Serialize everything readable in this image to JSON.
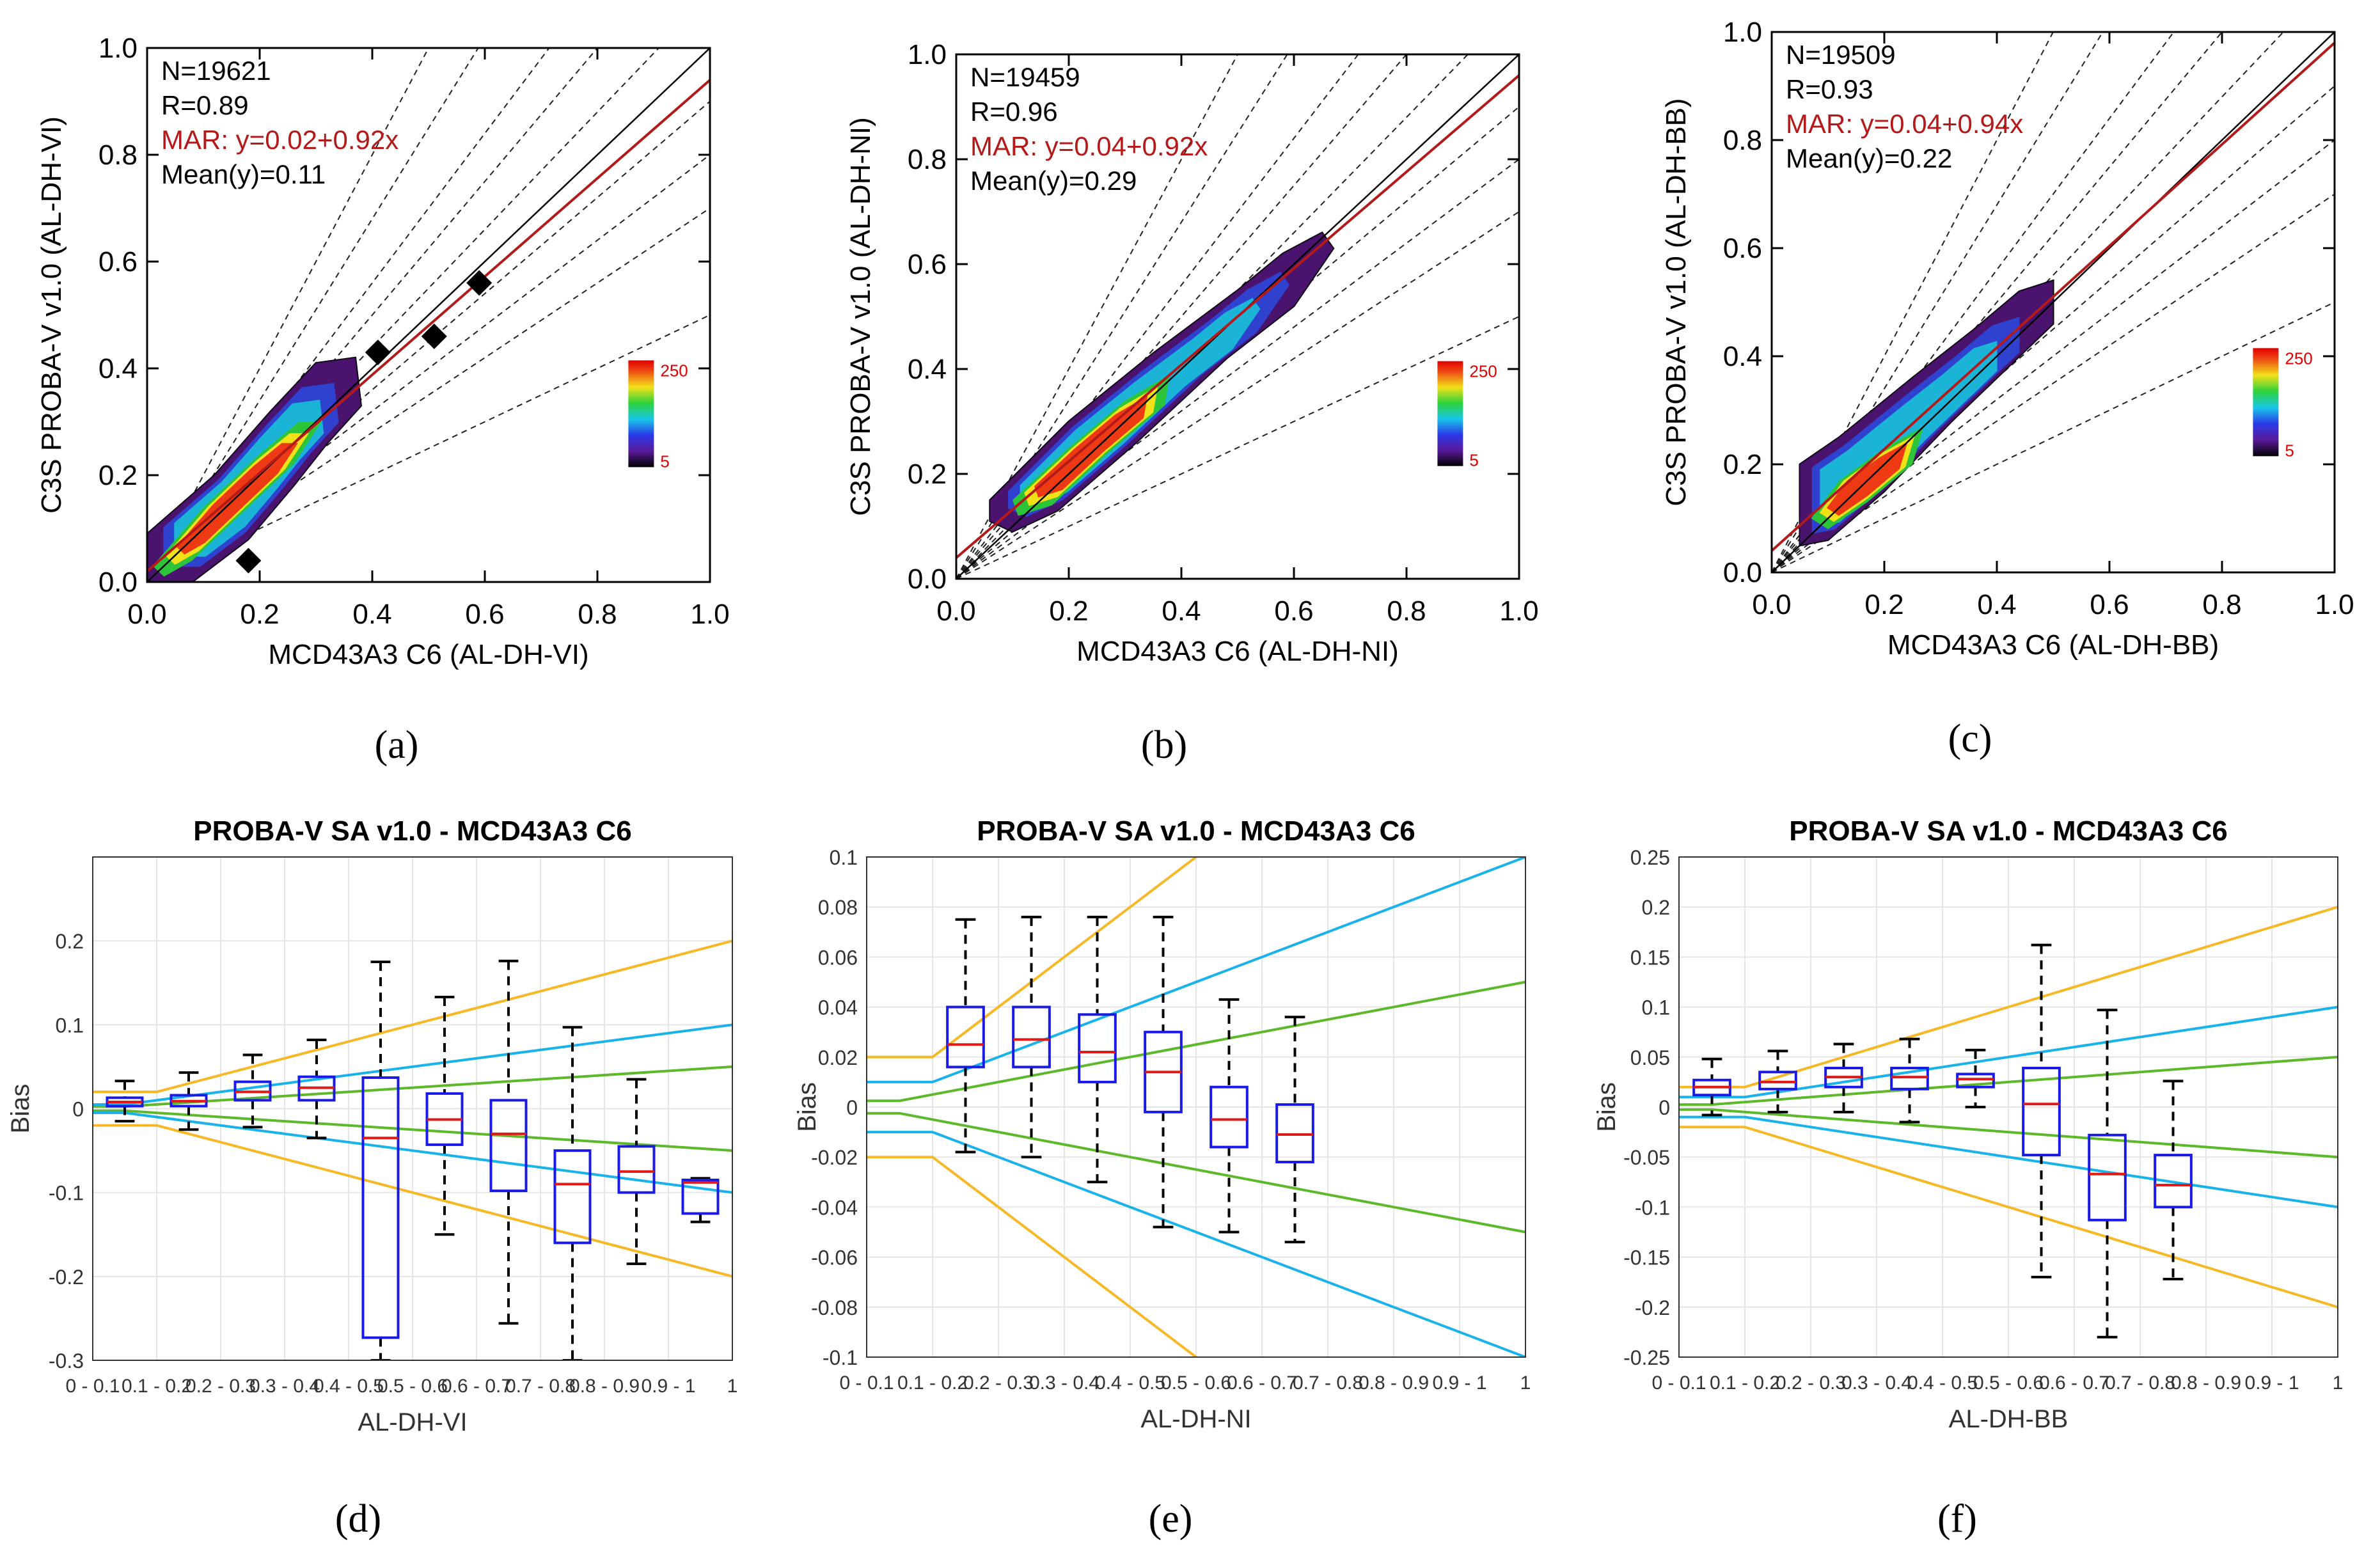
{
  "figure": {
    "panel_labels": [
      "(a)",
      "(b)",
      "(c)",
      "(d)",
      "(e)",
      "(f)"
    ]
  },
  "colors": {
    "mar_red": "#b41a1a",
    "blue_line": "#18b3ea",
    "green_line": "#5db92a",
    "orange_line": "#f7b825",
    "box_blue": "#1a1ae6",
    "median_red": "#e01919",
    "grid": "#e6e6e6"
  },
  "chart_data": [
    {
      "id": "a",
      "type": "scatter",
      "xlabel": "MCD43A3 C6 (AL-DH-VI)",
      "ylabel": "C3S PROBA-V v1.0 (AL-DH-VI)",
      "xlim": [
        0,
        1
      ],
      "ylim": [
        0,
        1
      ],
      "xticks": [
        "0.0",
        "0.2",
        "0.4",
        "0.6",
        "0.8",
        "1.0"
      ],
      "yticks": [
        "0.0",
        "0.2",
        "0.4",
        "0.6",
        "0.8",
        "1.0"
      ],
      "stats": {
        "n": "N=19621",
        "r": "R=0.89",
        "mar": "MAR: y=0.02+0.92x",
        "mean": "Mean(y)=0.11"
      },
      "mar_fit": {
        "intercept": 0.02,
        "slope": 0.92
      },
      "density_path": [
        [
          0.0,
          0.0
        ],
        [
          0.0,
          0.09
        ],
        [
          0.12,
          0.2
        ],
        [
          0.22,
          0.32
        ],
        [
          0.3,
          0.41
        ],
        [
          0.37,
          0.42
        ],
        [
          0.38,
          0.33
        ],
        [
          0.32,
          0.26
        ],
        [
          0.26,
          0.18
        ],
        [
          0.18,
          0.08
        ],
        [
          0.08,
          0.0
        ]
      ],
      "density_core": [
        [
          0.01,
          0.03
        ],
        [
          0.1,
          0.14
        ],
        [
          0.2,
          0.24
        ],
        [
          0.27,
          0.3
        ],
        [
          0.31,
          0.3
        ],
        [
          0.26,
          0.22
        ],
        [
          0.18,
          0.14
        ],
        [
          0.08,
          0.04
        ],
        [
          0.03,
          0.01
        ]
      ],
      "outliers": [
        [
          0.41,
          0.43
        ],
        [
          0.51,
          0.46
        ],
        [
          0.59,
          0.56
        ],
        [
          0.18,
          0.04
        ]
      ],
      "colorbar": {
        "max": "250",
        "min": "5"
      }
    },
    {
      "id": "b",
      "type": "scatter",
      "xlabel": "MCD43A3 C6 (AL-DH-NI)",
      "ylabel": "C3S PROBA-V v1.0 (AL-DH-NI)",
      "xlim": [
        0,
        1
      ],
      "ylim": [
        0,
        1
      ],
      "xticks": [
        "0.0",
        "0.2",
        "0.4",
        "0.6",
        "0.8",
        "1.0"
      ],
      "yticks": [
        "0.0",
        "0.2",
        "0.4",
        "0.6",
        "0.8",
        "1.0"
      ],
      "stats": {
        "n": "N=19459",
        "r": "R=0.96",
        "mar": "MAR: y=0.04+0.92x",
        "mean": "Mean(y)=0.29"
      },
      "mar_fit": {
        "intercept": 0.04,
        "slope": 0.92
      },
      "density_path": [
        [
          0.06,
          0.11
        ],
        [
          0.06,
          0.15
        ],
        [
          0.2,
          0.3
        ],
        [
          0.35,
          0.43
        ],
        [
          0.5,
          0.55
        ],
        [
          0.58,
          0.62
        ],
        [
          0.65,
          0.66
        ],
        [
          0.67,
          0.63
        ],
        [
          0.6,
          0.52
        ],
        [
          0.48,
          0.42
        ],
        [
          0.32,
          0.26
        ],
        [
          0.18,
          0.13
        ],
        [
          0.1,
          0.09
        ]
      ],
      "density_core": [
        [
          0.1,
          0.15
        ],
        [
          0.2,
          0.25
        ],
        [
          0.3,
          0.34
        ],
        [
          0.38,
          0.39
        ],
        [
          0.37,
          0.33
        ],
        [
          0.27,
          0.24
        ],
        [
          0.17,
          0.14
        ],
        [
          0.11,
          0.12
        ]
      ],
      "outliers": [],
      "colorbar": {
        "max": "250",
        "min": "5"
      }
    },
    {
      "id": "c",
      "type": "scatter",
      "xlabel": "MCD43A3 C6 (AL-DH-BB)",
      "ylabel": "C3S PROBA-V v1.0 (AL-DH-BB)",
      "xlim": [
        0,
        1
      ],
      "ylim": [
        0,
        1
      ],
      "xticks": [
        "0.0",
        "0.2",
        "0.4",
        "0.6",
        "0.8",
        "1.0"
      ],
      "yticks": [
        "0.0",
        "0.2",
        "0.4",
        "0.6",
        "0.8",
        "1.0"
      ],
      "stats": {
        "n": "N=19509",
        "r": "R=0.93",
        "mar": "MAR: y=0.04+0.94x",
        "mean": "Mean(y)=0.22"
      },
      "mar_fit": {
        "intercept": 0.04,
        "slope": 0.94
      },
      "density_path": [
        [
          0.05,
          0.05
        ],
        [
          0.05,
          0.2
        ],
        [
          0.12,
          0.25
        ],
        [
          0.25,
          0.36
        ],
        [
          0.36,
          0.45
        ],
        [
          0.44,
          0.52
        ],
        [
          0.5,
          0.54
        ],
        [
          0.5,
          0.46
        ],
        [
          0.42,
          0.38
        ],
        [
          0.32,
          0.28
        ],
        [
          0.2,
          0.15
        ],
        [
          0.1,
          0.06
        ]
      ],
      "density_core": [
        [
          0.07,
          0.1
        ],
        [
          0.12,
          0.17
        ],
        [
          0.2,
          0.23
        ],
        [
          0.27,
          0.27
        ],
        [
          0.25,
          0.2
        ],
        [
          0.17,
          0.13
        ],
        [
          0.1,
          0.08
        ]
      ],
      "outliers": [],
      "colorbar": {
        "max": "250",
        "min": "5"
      }
    },
    {
      "id": "d",
      "type": "box",
      "title": "PROBA-V SA v1.0 - MCD43A3 C6",
      "xlabel": "AL-DH-VI",
      "ylabel": "Bias",
      "xlim": [
        0,
        1
      ],
      "ylim": [
        -0.3,
        0.3
      ],
      "yticks": [
        [
          "0.2",
          0.2
        ],
        [
          "0.1",
          0.1
        ],
        [
          "0",
          0
        ],
        [
          "-0.1",
          -0.1
        ],
        [
          "-0.2",
          -0.2
        ],
        [
          "-0.3",
          -0.3
        ]
      ],
      "xticks": [
        "0 - 0.1",
        "0.1 - 0.2",
        "0.2 - 0.3",
        "0.3 - 0.4",
        "0.4 - 0.5",
        "0.5 - 0.6",
        "0.6 - 0.7",
        "0.7 - 0.8",
        "0.8 - 0.9",
        "0.9 - 1",
        "1"
      ],
      "thresholds": {
        "green": 0.05,
        "blue": 0.1,
        "orange": 0.2,
        "green_floor": 0.0025,
        "blue_floor": 0.005,
        "orange_floor": 0.02
      },
      "boxes": [
        {
          "x": 0.05,
          "wlo": -0.015,
          "q1": 0.003,
          "med": 0.008,
          "q3": 0.013,
          "whi": 0.033
        },
        {
          "x": 0.15,
          "wlo": -0.025,
          "q1": 0.003,
          "med": 0.009,
          "q3": 0.016,
          "whi": 0.043
        },
        {
          "x": 0.25,
          "wlo": -0.022,
          "q1": 0.01,
          "med": 0.02,
          "q3": 0.032,
          "whi": 0.064
        },
        {
          "x": 0.35,
          "wlo": -0.035,
          "q1": 0.01,
          "med": 0.025,
          "q3": 0.038,
          "whi": 0.082
        },
        {
          "x": 0.45,
          "wlo": -0.3,
          "q1": -0.273,
          "med": -0.035,
          "q3": 0.037,
          "whi": 0.175
        },
        {
          "x": 0.55,
          "wlo": -0.15,
          "q1": -0.043,
          "med": -0.013,
          "q3": 0.018,
          "whi": 0.133
        },
        {
          "x": 0.65,
          "wlo": -0.256,
          "q1": -0.098,
          "med": -0.03,
          "q3": 0.01,
          "whi": 0.176
        },
        {
          "x": 0.75,
          "wlo": -0.3,
          "q1": -0.16,
          "med": -0.09,
          "q3": -0.05,
          "whi": 0.097
        },
        {
          "x": 0.85,
          "wlo": -0.185,
          "q1": -0.1,
          "med": -0.075,
          "q3": -0.045,
          "whi": 0.035
        },
        {
          "x": 0.95,
          "wlo": -0.135,
          "q1": -0.125,
          "med": -0.088,
          "q3": -0.085,
          "whi": -0.083
        }
      ]
    },
    {
      "id": "e",
      "type": "box",
      "title": "PROBA-V SA v1.0 - MCD43A3 C6",
      "xlabel": "AL-DH-NI",
      "ylabel": "Bias",
      "xlim": [
        0,
        1
      ],
      "ylim": [
        -0.1,
        0.1
      ],
      "yticks": [
        [
          "0.1",
          0.1
        ],
        [
          "0.08",
          0.08
        ],
        [
          "0.06",
          0.06
        ],
        [
          "0.04",
          0.04
        ],
        [
          "0.02",
          0.02
        ],
        [
          "0",
          0
        ],
        [
          "-0.02",
          -0.02
        ],
        [
          "-0.04",
          -0.04
        ],
        [
          "-0.06",
          -0.06
        ],
        [
          "-0.08",
          -0.08
        ],
        [
          "-0.1",
          -0.1
        ]
      ],
      "xticks": [
        "0 - 0.1",
        "0.1 - 0.2",
        "0.2 - 0.3",
        "0.3 - 0.4",
        "0.4 - 0.5",
        "0.5 - 0.6",
        "0.6 - 0.7",
        "0.7 - 0.8",
        "0.8 - 0.9",
        "0.9 - 1",
        "1"
      ],
      "thresholds": {
        "green": 0.05,
        "blue": 0.1,
        "orange": 0.2,
        "green_floor": 0.0025,
        "blue_floor": 0.01,
        "orange_floor": 0.02
      },
      "boxes": [
        {
          "x": 0.15,
          "wlo": -0.018,
          "q1": 0.016,
          "med": 0.025,
          "q3": 0.04,
          "whi": 0.075
        },
        {
          "x": 0.25,
          "wlo": -0.02,
          "q1": 0.016,
          "med": 0.027,
          "q3": 0.04,
          "whi": 0.076
        },
        {
          "x": 0.35,
          "wlo": -0.03,
          "q1": 0.01,
          "med": 0.022,
          "q3": 0.037,
          "whi": 0.076
        },
        {
          "x": 0.45,
          "wlo": -0.048,
          "q1": -0.002,
          "med": 0.014,
          "q3": 0.03,
          "whi": 0.076
        },
        {
          "x": 0.55,
          "wlo": -0.05,
          "q1": -0.016,
          "med": -0.005,
          "q3": 0.008,
          "whi": 0.043
        },
        {
          "x": 0.65,
          "wlo": -0.054,
          "q1": -0.022,
          "med": -0.011,
          "q3": 0.001,
          "whi": 0.036
        }
      ]
    },
    {
      "id": "f",
      "type": "box",
      "title": "PROBA-V SA v1.0 - MCD43A3 C6",
      "xlabel": "AL-DH-BB",
      "ylabel": "Bias",
      "xlim": [
        0,
        1
      ],
      "ylim": [
        -0.25,
        0.25
      ],
      "yticks": [
        [
          "0.25",
          0.25
        ],
        [
          "0.2",
          0.2
        ],
        [
          "0.15",
          0.15
        ],
        [
          "0.1",
          0.1
        ],
        [
          "0.05",
          0.05
        ],
        [
          "0",
          0
        ],
        [
          "-0.05",
          -0.05
        ],
        [
          "-0.1",
          -0.1
        ],
        [
          "-0.15",
          -0.15
        ],
        [
          "-0.2",
          -0.2
        ],
        [
          "-0.25",
          -0.25
        ]
      ],
      "xticks": [
        "0 - 0.1",
        "0.1 - 0.2",
        "0.2 - 0.3",
        "0.3 - 0.4",
        "0.4 - 0.5",
        "0.5 - 0.6",
        "0.6 - 0.7",
        "0.7 - 0.8",
        "0.8 - 0.9",
        "0.9 - 1",
        "1"
      ],
      "thresholds": {
        "green": 0.05,
        "blue": 0.1,
        "orange": 0.2,
        "green_floor": 0.0025,
        "blue_floor": 0.01,
        "orange_floor": 0.02
      },
      "boxes": [
        {
          "x": 0.05,
          "wlo": -0.008,
          "q1": 0.012,
          "med": 0.02,
          "q3": 0.027,
          "whi": 0.048
        },
        {
          "x": 0.15,
          "wlo": -0.005,
          "q1": 0.018,
          "med": 0.025,
          "q3": 0.035,
          "whi": 0.056
        },
        {
          "x": 0.25,
          "wlo": -0.005,
          "q1": 0.02,
          "med": 0.03,
          "q3": 0.039,
          "whi": 0.063
        },
        {
          "x": 0.35,
          "wlo": -0.015,
          "q1": 0.018,
          "med": 0.03,
          "q3": 0.039,
          "whi": 0.068
        },
        {
          "x": 0.45,
          "wlo": 0.0,
          "q1": 0.02,
          "med": 0.028,
          "q3": 0.033,
          "whi": 0.057
        },
        {
          "x": 0.55,
          "wlo": -0.17,
          "q1": -0.048,
          "med": 0.003,
          "q3": 0.039,
          "whi": 0.162
        },
        {
          "x": 0.65,
          "wlo": -0.23,
          "q1": -0.113,
          "med": -0.067,
          "q3": -0.028,
          "whi": 0.097
        },
        {
          "x": 0.75,
          "wlo": -0.172,
          "q1": -0.1,
          "med": -0.078,
          "q3": -0.048,
          "whi": 0.026
        }
      ]
    }
  ]
}
